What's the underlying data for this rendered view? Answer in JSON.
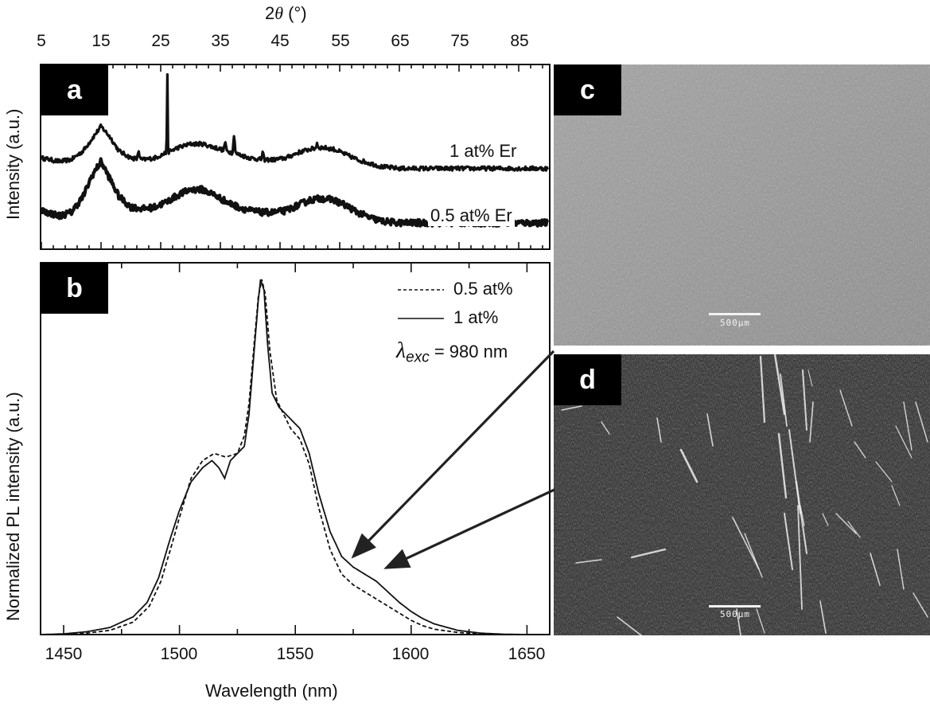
{
  "figure": {
    "panel_labels": [
      "a",
      "b",
      "c",
      "d"
    ],
    "panel_a": {
      "top_axis_title": "2θ (°)",
      "top_axis_title_parts": {
        "prefix": "2",
        "theta": "θ",
        "suffix": " (°)"
      },
      "top_ticks": [
        "5",
        "15",
        "25",
        "35",
        "45",
        "55",
        "65",
        "75",
        "85"
      ],
      "ylabel": "Intensity (a.u.)",
      "series_labels": [
        "1 at% Er",
        "0.5 at% Er"
      ]
    },
    "panel_b": {
      "xlabel": "Wavelength (nm)",
      "ylabel": "Normalized PL intensity (a.u.)",
      "x_ticks": [
        "1450",
        "1500",
        "1550",
        "1600",
        "1650"
      ],
      "legend": [
        {
          "style": "dashed",
          "label": "0.5 at%"
        },
        {
          "style": "solid",
          "label": "1 at%"
        }
      ],
      "excitation": {
        "symbol": "λ",
        "subscript": "exc",
        "value": "= 980 nm"
      }
    },
    "panel_c": {
      "scale_bar": "500μm",
      "tone": "#9a9a9a"
    },
    "panel_d": {
      "scale_bar": "500μm",
      "tone": "#3c3c3c"
    }
  },
  "chart_data": [
    {
      "type": "line",
      "panel": "a",
      "title": "",
      "xlabel": "2θ (°)",
      "ylabel": "Intensity (a.u.)",
      "xlim": [
        5,
        90
      ],
      "x_ticks": [
        5,
        15,
        25,
        35,
        45,
        55,
        65,
        75,
        85
      ],
      "legend_position": "inline-right",
      "grid": false,
      "series": [
        {
          "name": "1 at% Er",
          "x": [
            5,
            8,
            10,
            12,
            13.5,
            15,
            16.5,
            18,
            20,
            22,
            24,
            26,
            28,
            30,
            32,
            34,
            36,
            38,
            40,
            42,
            44,
            46,
            48,
            50,
            52,
            54,
            56,
            58,
            60,
            62,
            65,
            70,
            75,
            80,
            85,
            90
          ],
          "y": [
            0.52,
            0.5,
            0.51,
            0.56,
            0.63,
            0.7,
            0.64,
            0.56,
            0.52,
            0.51,
            0.52,
            0.55,
            0.58,
            0.6,
            0.6,
            0.58,
            0.56,
            0.54,
            0.52,
            0.51,
            0.51,
            0.52,
            0.55,
            0.57,
            0.58,
            0.57,
            0.54,
            0.51,
            0.49,
            0.47,
            0.46,
            0.46,
            0.46,
            0.46,
            0.46,
            0.46
          ],
          "sharp_peaks": [
            {
              "x": 21.3,
              "height": 0.05
            },
            {
              "x": 26.1,
              "height": 0.46
            },
            {
              "x": 35.8,
              "height": 0.05
            },
            {
              "x": 37.3,
              "height": 0.11
            },
            {
              "x": 42.1,
              "height": 0.04
            },
            {
              "x": 51.2,
              "height": 0.03
            }
          ]
        },
        {
          "name": "0.5 at% Er",
          "x": [
            5,
            8,
            10,
            12,
            13.5,
            15,
            16.5,
            18,
            20,
            22,
            24,
            26,
            28,
            30,
            32,
            34,
            36,
            38,
            40,
            42,
            44,
            46,
            48,
            50,
            52,
            54,
            56,
            58,
            60,
            62,
            65,
            70,
            75,
            80,
            85,
            90
          ],
          "y": [
            0.22,
            0.19,
            0.21,
            0.3,
            0.42,
            0.5,
            0.4,
            0.3,
            0.24,
            0.23,
            0.24,
            0.27,
            0.31,
            0.34,
            0.34,
            0.31,
            0.27,
            0.24,
            0.22,
            0.21,
            0.21,
            0.22,
            0.25,
            0.28,
            0.29,
            0.28,
            0.25,
            0.21,
            0.18,
            0.16,
            0.15,
            0.15,
            0.15,
            0.15,
            0.15,
            0.15
          ],
          "sharp_peaks": []
        }
      ]
    },
    {
      "type": "line",
      "panel": "b",
      "title": "",
      "xlabel": "Wavelength (nm)",
      "ylabel": "Normalized PL intensity (a.u.)",
      "xlim": [
        1440,
        1660
      ],
      "ylim": [
        0,
        1.0
      ],
      "x_ticks": [
        1450,
        1500,
        1550,
        1600,
        1650
      ],
      "legend_position": "upper right",
      "grid": false,
      "annotations": [
        "λexc = 980 nm"
      ],
      "series": [
        {
          "name": "0.5 at%",
          "style": "dashed",
          "x": [
            1440,
            1450,
            1460,
            1470,
            1480,
            1487,
            1492,
            1497,
            1500,
            1505,
            1510,
            1515,
            1520,
            1525,
            1528,
            1530,
            1532,
            1534,
            1535.5,
            1537,
            1539,
            1542,
            1545,
            1548,
            1552,
            1556,
            1560,
            1565,
            1570,
            1575,
            1580,
            1585,
            1590,
            1595,
            1600,
            1605,
            1610,
            1620,
            1630,
            1640,
            1650,
            1660
          ],
          "y": [
            0.0,
            0.0,
            0.004,
            0.012,
            0.035,
            0.08,
            0.15,
            0.26,
            0.33,
            0.44,
            0.49,
            0.51,
            0.5,
            0.51,
            0.56,
            0.65,
            0.8,
            0.95,
            1.0,
            0.96,
            0.8,
            0.66,
            0.62,
            0.58,
            0.55,
            0.48,
            0.36,
            0.24,
            0.17,
            0.14,
            0.12,
            0.1,
            0.08,
            0.06,
            0.04,
            0.025,
            0.015,
            0.006,
            0.002,
            0.0,
            0.0,
            0.0
          ]
        },
        {
          "name": "1 at%",
          "style": "solid",
          "x": [
            1440,
            1450,
            1460,
            1470,
            1480,
            1486,
            1491,
            1496,
            1500,
            1505,
            1510,
            1514,
            1517,
            1519.5,
            1522,
            1525,
            1528,
            1530,
            1532,
            1534,
            1535,
            1536.5,
            1538,
            1540,
            1543,
            1546,
            1549,
            1552,
            1556,
            1560,
            1565,
            1570,
            1575,
            1580,
            1585,
            1590,
            1595,
            1600,
            1605,
            1610,
            1620,
            1630,
            1640,
            1650,
            1660
          ],
          "y": [
            0.0,
            0.002,
            0.008,
            0.02,
            0.05,
            0.09,
            0.16,
            0.27,
            0.35,
            0.43,
            0.47,
            0.49,
            0.47,
            0.44,
            0.49,
            0.51,
            0.53,
            0.62,
            0.78,
            0.94,
            1.0,
            0.97,
            0.82,
            0.68,
            0.64,
            0.62,
            0.6,
            0.58,
            0.51,
            0.4,
            0.29,
            0.22,
            0.19,
            0.17,
            0.15,
            0.12,
            0.09,
            0.065,
            0.045,
            0.03,
            0.012,
            0.004,
            0.001,
            0.0,
            0.0
          ]
        }
      ]
    }
  ]
}
